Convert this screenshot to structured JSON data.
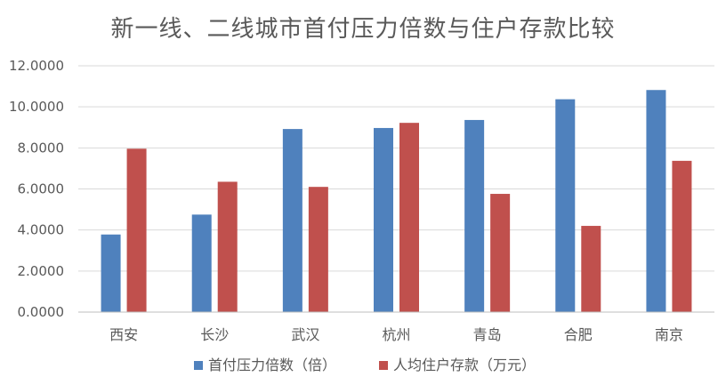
{
  "chart_data": {
    "type": "bar",
    "title": "新一线、二线城市首付压力倍数与住户存款比较",
    "xlabel": "",
    "ylabel": "",
    "categories": [
      "西安",
      "长沙",
      "武汉",
      "杭州",
      "青岛",
      "合肥",
      "南京"
    ],
    "series": [
      {
        "name": "首付压力倍数（倍）",
        "color": "#4F81BD",
        "values": [
          3.78,
          4.75,
          8.92,
          8.97,
          9.36,
          10.37,
          10.82
        ]
      },
      {
        "name": "人均住户存款（万元）",
        "color": "#C0504D",
        "values": [
          7.96,
          6.35,
          6.1,
          9.22,
          5.76,
          4.2,
          7.37
        ]
      }
    ],
    "ylim": [
      0,
      12
    ],
    "yticks": [
      0,
      2,
      4,
      6,
      8,
      10,
      12
    ],
    "ytick_labels": [
      "0.0000",
      "2.0000",
      "4.0000",
      "6.0000",
      "8.0000",
      "10.0000",
      "12.0000"
    ],
    "grid": true,
    "legend_position": "bottom"
  }
}
